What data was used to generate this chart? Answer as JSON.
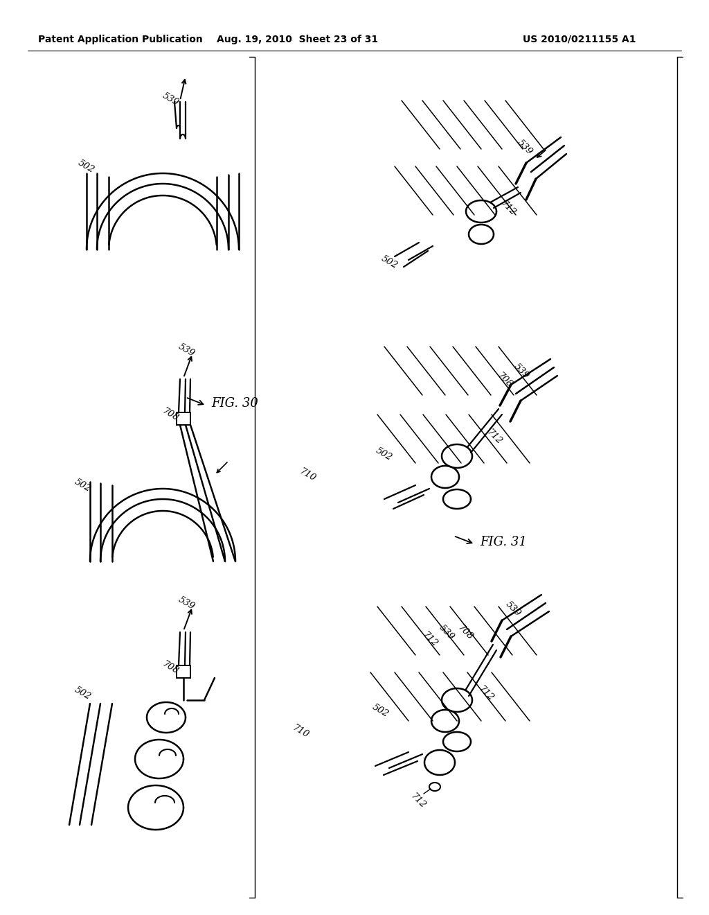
{
  "header_left": "Patent Application Publication",
  "header_mid": "Aug. 19, 2010  Sheet 23 of 31",
  "header_right": "US 2010/0211155 A1",
  "fig30_label": "FIG. 30",
  "fig31_label": "FIG. 31",
  "background_color": "#ffffff",
  "line_color": "#000000"
}
